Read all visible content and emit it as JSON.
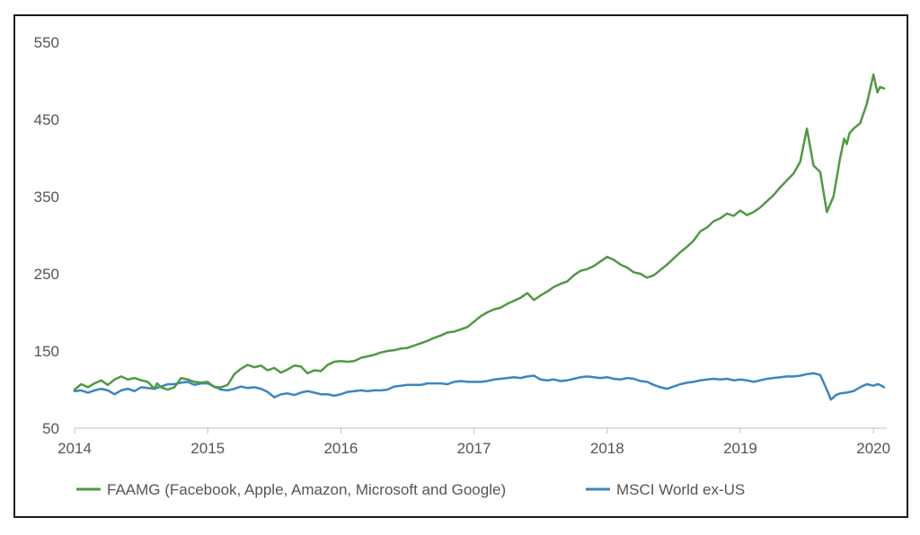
{
  "chart_data": {
    "type": "line",
    "title": "",
    "xlabel": "",
    "ylabel": "",
    "xlim": [
      2014,
      2020.1
    ],
    "ylim": [
      50,
      550
    ],
    "x_ticks": [
      {
        "value": 2014,
        "label": "2014"
      },
      {
        "value": 2015,
        "label": "2015"
      },
      {
        "value": 2016,
        "label": "2016"
      },
      {
        "value": 2017,
        "label": "2017"
      },
      {
        "value": 2018,
        "label": "2018"
      },
      {
        "value": 2019,
        "label": "2019"
      },
      {
        "value": 2020,
        "label": "2020"
      }
    ],
    "y_ticks": [
      {
        "value": 50,
        "label": "50"
      },
      {
        "value": 150,
        "label": "150"
      },
      {
        "value": 250,
        "label": "250"
      },
      {
        "value": 350,
        "label": "350"
      },
      {
        "value": 450,
        "label": "450"
      },
      {
        "value": 550,
        "label": "550"
      }
    ],
    "grid": false,
    "legend_position": "bottom",
    "series": [
      {
        "name": "FAAMG (Facebook, Apple, Amazon, Microsoft and Google)",
        "color": "#4f9a41",
        "x": [
          2014.0,
          2014.05,
          2014.1,
          2014.15,
          2014.2,
          2014.25,
          2014.3,
          2014.35,
          2014.4,
          2014.45,
          2014.5,
          2014.55,
          2014.6,
          2014.62,
          2014.65,
          2014.7,
          2014.75,
          2014.8,
          2014.85,
          2014.9,
          2014.95,
          2015.0,
          2015.05,
          2015.1,
          2015.15,
          2015.2,
          2015.25,
          2015.3,
          2015.35,
          2015.4,
          2015.45,
          2015.5,
          2015.55,
          2015.6,
          2015.65,
          2015.7,
          2015.75,
          2015.8,
          2015.85,
          2015.9,
          2015.95,
          2016.0,
          2016.05,
          2016.1,
          2016.15,
          2016.2,
          2016.25,
          2016.3,
          2016.35,
          2016.4,
          2016.45,
          2016.5,
          2016.55,
          2016.6,
          2016.65,
          2016.7,
          2016.75,
          2016.8,
          2016.85,
          2016.9,
          2016.95,
          2017.0,
          2017.05,
          2017.1,
          2017.15,
          2017.2,
          2017.25,
          2017.3,
          2017.35,
          2017.4,
          2017.45,
          2017.5,
          2017.55,
          2017.6,
          2017.65,
          2017.7,
          2017.75,
          2017.8,
          2017.85,
          2017.9,
          2017.95,
          2018.0,
          2018.05,
          2018.1,
          2018.15,
          2018.2,
          2018.25,
          2018.3,
          2018.35,
          2018.4,
          2018.45,
          2018.5,
          2018.55,
          2018.6,
          2018.65,
          2018.7,
          2018.75,
          2018.8,
          2018.85,
          2018.9,
          2018.95,
          2019.0,
          2019.05,
          2019.1,
          2019.15,
          2019.2,
          2019.25,
          2019.3,
          2019.35,
          2019.4,
          2019.45,
          2019.5,
          2019.55,
          2019.6,
          2019.65,
          2019.7,
          2019.72,
          2019.75,
          2019.78,
          2019.8,
          2019.82,
          2019.85,
          2019.9,
          2019.95,
          2020.0,
          2020.03,
          2020.05,
          2020.08
        ],
        "y": [
          100,
          107,
          103,
          108,
          112,
          106,
          113,
          117,
          113,
          115,
          112,
          110,
          101,
          108,
          103,
          100,
          103,
          115,
          113,
          110,
          109,
          110,
          103,
          103,
          106,
          120,
          127,
          132,
          129,
          131,
          125,
          128,
          122,
          126,
          131,
          130,
          121,
          125,
          124,
          132,
          136,
          137,
          136,
          137,
          141,
          143,
          145,
          148,
          150,
          151,
          153,
          154,
          157,
          160,
          163,
          167,
          170,
          174,
          175,
          178,
          181,
          188,
          195,
          200,
          204,
          206,
          211,
          215,
          219,
          225,
          216,
          222,
          227,
          233,
          237,
          240,
          248,
          254,
          256,
          260,
          266,
          272,
          268,
          262,
          258,
          252,
          250,
          245,
          248,
          255,
          262,
          270,
          278,
          285,
          293,
          305,
          310,
          318,
          322,
          328,
          325,
          332,
          326,
          330,
          336,
          344,
          352,
          362,
          371,
          380,
          395,
          438,
          390,
          382,
          330,
          350,
          370,
          400,
          425,
          418,
          432,
          438,
          445,
          470,
          508,
          485,
          492,
          490
        ]
      },
      {
        "name": "MSCI World ex-US",
        "color": "#3a86c1",
        "x": [
          2014.0,
          2014.05,
          2014.1,
          2014.15,
          2014.2,
          2014.25,
          2014.3,
          2014.35,
          2014.4,
          2014.45,
          2014.5,
          2014.55,
          2014.6,
          2014.65,
          2014.7,
          2014.75,
          2014.8,
          2014.85,
          2014.9,
          2014.95,
          2015.0,
          2015.05,
          2015.1,
          2015.15,
          2015.2,
          2015.25,
          2015.3,
          2015.35,
          2015.4,
          2015.45,
          2015.5,
          2015.55,
          2015.6,
          2015.65,
          2015.7,
          2015.75,
          2015.8,
          2015.85,
          2015.9,
          2015.95,
          2016.0,
          2016.05,
          2016.1,
          2016.15,
          2016.2,
          2016.25,
          2016.3,
          2016.35,
          2016.4,
          2016.45,
          2016.5,
          2016.55,
          2016.6,
          2016.65,
          2016.7,
          2016.75,
          2016.8,
          2016.85,
          2016.9,
          2016.95,
          2017.0,
          2017.05,
          2017.1,
          2017.15,
          2017.2,
          2017.25,
          2017.3,
          2017.35,
          2017.4,
          2017.45,
          2017.5,
          2017.55,
          2017.6,
          2017.65,
          2017.7,
          2017.75,
          2017.8,
          2017.85,
          2017.9,
          2017.95,
          2018.0,
          2018.05,
          2018.1,
          2018.15,
          2018.2,
          2018.25,
          2018.3,
          2018.35,
          2018.4,
          2018.45,
          2018.5,
          2018.55,
          2018.6,
          2018.65,
          2018.7,
          2018.75,
          2018.8,
          2018.85,
          2018.9,
          2018.95,
          2019.0,
          2019.05,
          2019.1,
          2019.15,
          2019.2,
          2019.25,
          2019.3,
          2019.35,
          2019.4,
          2019.45,
          2019.5,
          2019.55,
          2019.6,
          2019.65,
          2019.68,
          2019.72,
          2019.75,
          2019.8,
          2019.85,
          2019.9,
          2019.95,
          2020.0,
          2020.03,
          2020.05,
          2020.08
        ],
        "y": [
          98,
          99,
          96,
          99,
          101,
          99,
          94,
          99,
          101,
          98,
          103,
          102,
          101,
          104,
          107,
          107,
          109,
          110,
          106,
          108,
          108,
          104,
          100,
          99,
          101,
          104,
          102,
          103,
          101,
          97,
          90,
          94,
          95,
          93,
          96,
          98,
          96,
          94,
          94,
          92,
          94,
          97,
          98,
          99,
          98,
          99,
          99,
          100,
          104,
          105,
          106,
          106,
          106,
          108,
          108,
          108,
          107,
          110,
          111,
          110,
          110,
          110,
          111,
          113,
          114,
          115,
          116,
          115,
          117,
          118,
          113,
          112,
          113,
          111,
          112,
          114,
          116,
          117,
          116,
          115,
          116,
          114,
          113,
          115,
          114,
          111,
          110,
          106,
          103,
          101,
          104,
          107,
          109,
          110,
          112,
          113,
          114,
          113,
          114,
          112,
          113,
          112,
          110,
          112,
          114,
          115,
          116,
          117,
          117,
          118,
          120,
          121,
          119,
          100,
          87,
          93,
          95,
          96,
          98,
          103,
          107,
          105,
          107,
          106,
          103
        ]
      }
    ]
  }
}
